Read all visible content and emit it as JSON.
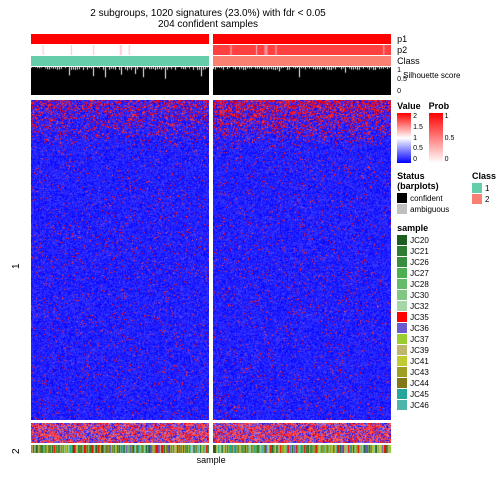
{
  "title_line1": "2 subgroups, 1020 signatures (23.0%) with fdr < 0.05",
  "title_line2": "204 confident samples",
  "title_fontsize": 11,
  "annotation_tracks": {
    "p1": {
      "label": "p1",
      "left_color": "#ff0000",
      "right_color": "#ff0000",
      "height": 10
    },
    "p2": {
      "label": "p2",
      "left_color": "#ffffff",
      "right_color": "#ff4040",
      "height": 10
    },
    "class": {
      "label": "Class",
      "left_color": "#66cdaa",
      "right_color": "#fa8072",
      "height": 10
    },
    "silhouette": {
      "label": "Silhouette score",
      "bg": "#000000",
      "height": 28,
      "ticks": [
        "1",
        "0.5",
        "0"
      ]
    }
  },
  "heatmap": {
    "rows_group1_label": "1",
    "rows_group2_label": "2",
    "group1_height": 320,
    "group2_height": 20,
    "colors": {
      "low": "#0000ff",
      "mid": "#ffffff",
      "high": "#ff0000"
    },
    "bottom_sample_height": 8,
    "xlabel": "sample"
  },
  "legends": {
    "value": {
      "title": "Value",
      "gradient": [
        "#0000ff",
        "#ffffff",
        "#ff0000"
      ],
      "ticks": [
        "2",
        "1.5",
        "1",
        "0.5",
        "0"
      ]
    },
    "prob": {
      "title": "Prob",
      "gradient": [
        "#ffffff",
        "#ff0000"
      ],
      "ticks": [
        "1",
        "0.5",
        "0"
      ]
    },
    "status": {
      "title": "Status (barplots)",
      "items": [
        {
          "label": "confident",
          "color": "#000000"
        },
        {
          "label": "ambiguous",
          "color": "#bfbfbf"
        }
      ]
    },
    "class": {
      "title": "Class",
      "items": [
        {
          "label": "1",
          "color": "#66cdaa"
        },
        {
          "label": "2",
          "color": "#fa8072"
        }
      ]
    },
    "sample": {
      "title": "sample",
      "items": [
        {
          "label": "JC20",
          "color": "#1b5e20"
        },
        {
          "label": "JC21",
          "color": "#2e7d32"
        },
        {
          "label": "JC26",
          "color": "#388e3c"
        },
        {
          "label": "JC27",
          "color": "#4caf50"
        },
        {
          "label": "JC28",
          "color": "#66bb6a"
        },
        {
          "label": "JC30",
          "color": "#81c784"
        },
        {
          "label": "JC32",
          "color": "#a5d6a7"
        },
        {
          "label": "JC35",
          "color": "#ff0000"
        },
        {
          "label": "JC36",
          "color": "#6a5acd"
        },
        {
          "label": "JC37",
          "color": "#9acd32"
        },
        {
          "label": "JC39",
          "color": "#bdb76b"
        },
        {
          "label": "JC41",
          "color": "#c0ca33"
        },
        {
          "label": "JC43",
          "color": "#9e9d24"
        },
        {
          "label": "JC44",
          "color": "#827717"
        },
        {
          "label": "JC45",
          "color": "#26a69a"
        },
        {
          "label": "JC46",
          "color": "#4db6ac"
        }
      ]
    }
  }
}
